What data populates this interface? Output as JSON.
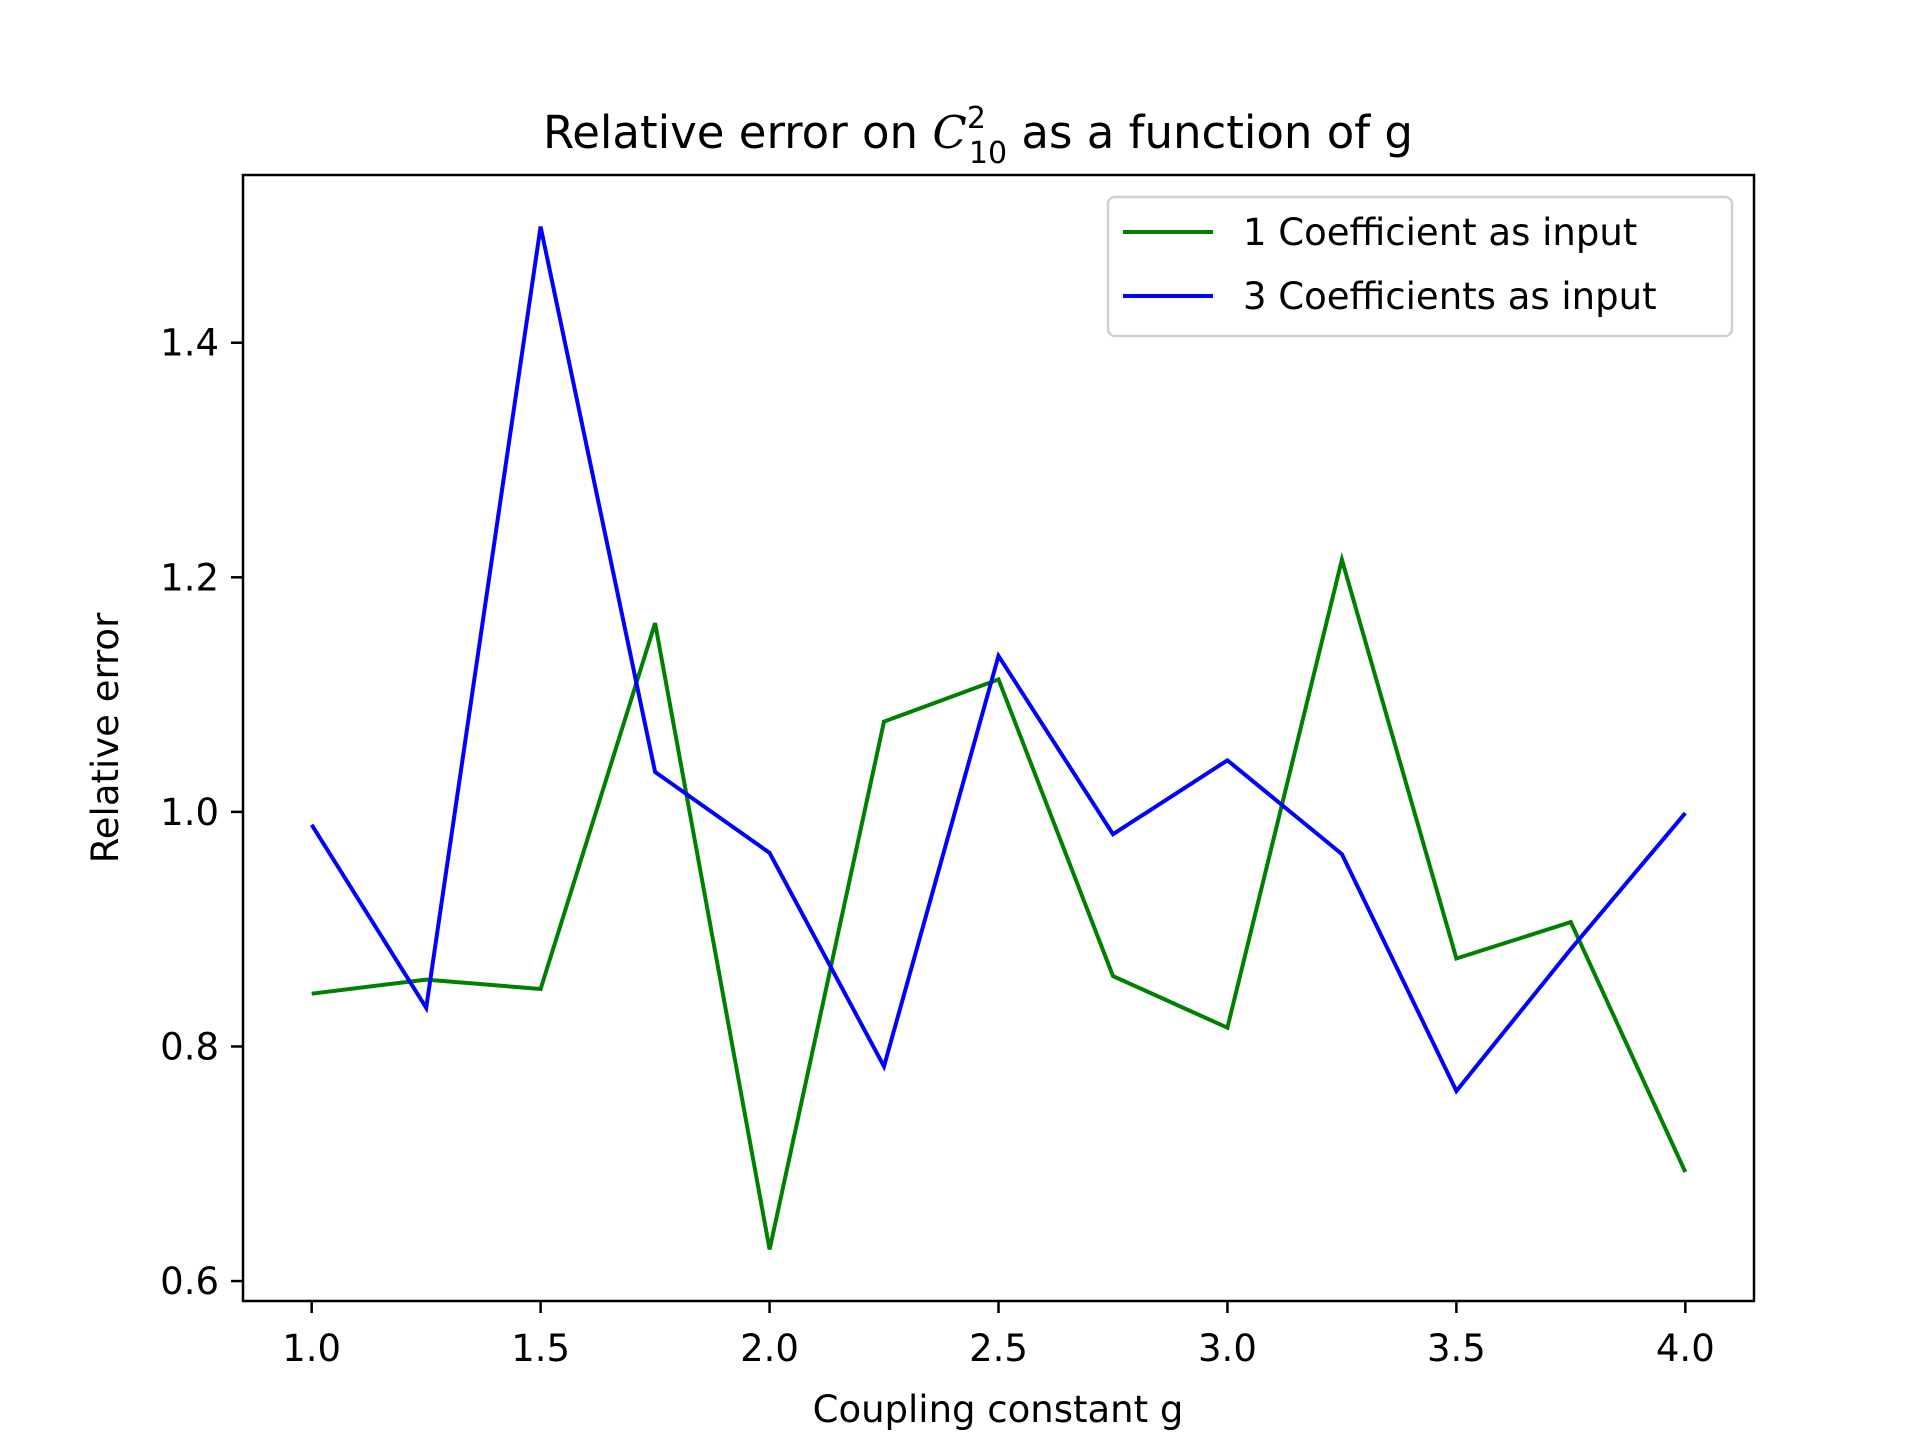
{
  "chart_data": {
    "type": "line",
    "title": {
      "prefix": "Relative error on ",
      "symbol": "C",
      "superscript": "2",
      "subscript": "10",
      "suffix": " as a function of g"
    },
    "xlabel": "Coupling constant g",
    "ylabel": "Relative error",
    "x": [
      1.0,
      1.25,
      1.5,
      1.75,
      2.0,
      2.25,
      2.5,
      2.75,
      3.0,
      3.25,
      3.5,
      3.75,
      4.0
    ],
    "xlim": [
      0.85,
      4.15
    ],
    "ylim": [
      0.583,
      1.543
    ],
    "xticks": [
      1.0,
      1.5,
      2.0,
      2.5,
      3.0,
      3.5,
      4.0
    ],
    "xtick_labels": [
      "1.0",
      "1.5",
      "2.0",
      "2.5",
      "3.0",
      "3.5",
      "4.0"
    ],
    "yticks": [
      0.6,
      0.8,
      1.0,
      1.2,
      1.4
    ],
    "ytick_labels": [
      "0.6",
      "0.8",
      "1.0",
      "1.2",
      "1.4"
    ],
    "grid": false,
    "legend_position": "top-right",
    "series": [
      {
        "name": "1 Coefficient as input",
        "color": "#008000",
        "values": [
          0.845,
          0.857,
          0.849,
          1.161,
          0.627,
          1.077,
          1.113,
          0.86,
          0.816,
          1.215,
          0.875,
          0.906,
          0.693
        ]
      },
      {
        "name": "3 Coefficients as input",
        "color": "#0000ff",
        "values": [
          0.989,
          0.833,
          1.499,
          1.034,
          0.965,
          0.783,
          1.133,
          0.981,
          1.044,
          0.964,
          0.762,
          0.883,
          0.999
        ]
      }
    ]
  }
}
